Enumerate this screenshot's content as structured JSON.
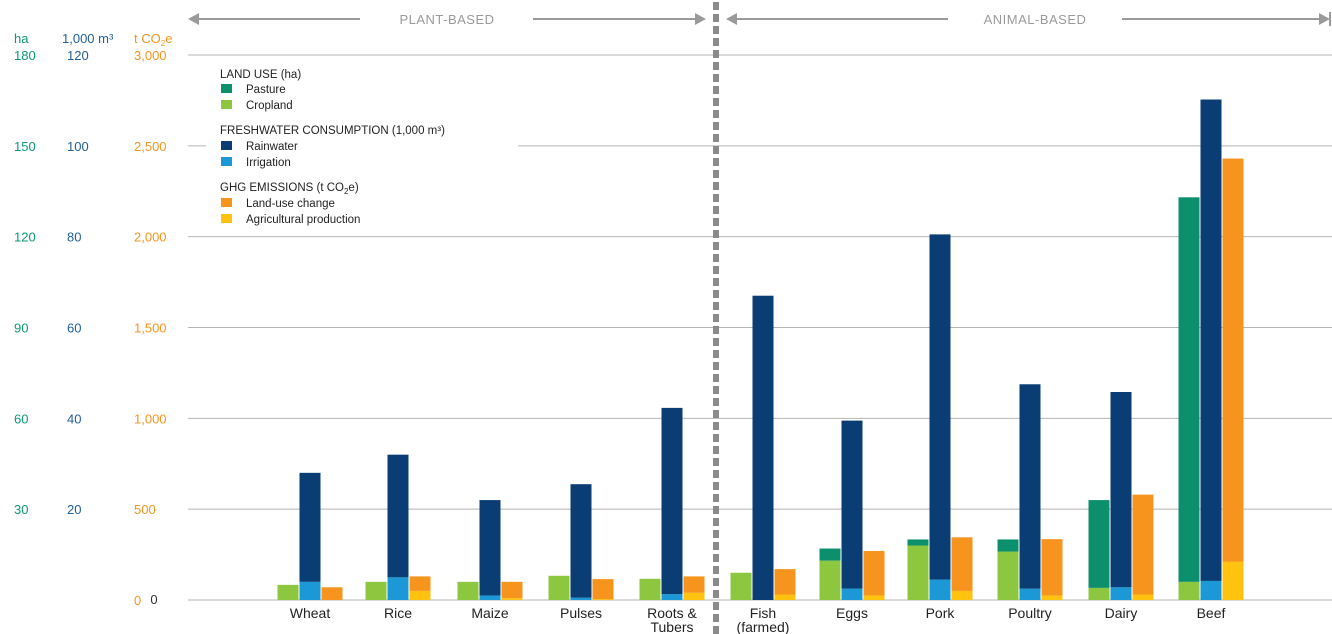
{
  "chart_data": {
    "type": "bar",
    "stacked": true,
    "grouped": true,
    "categories": [
      "Wheat",
      "Rice",
      "Maize",
      "Pulses",
      "Roots & Tubers",
      "Fish (farmed)",
      "Eggs",
      "Pork",
      "Poultry",
      "Dairy",
      "Beef"
    ],
    "sections": [
      {
        "label": "PLANT-BASED",
        "categories": [
          "Wheat",
          "Rice",
          "Maize",
          "Pulses",
          "Roots & Tubers"
        ]
      },
      {
        "label": "ANIMAL-BASED",
        "categories": [
          "Fish (farmed)",
          "Eggs",
          "Pork",
          "Poultry",
          "Dairy",
          "Beef"
        ]
      }
    ],
    "axes": [
      {
        "unit": "ha",
        "ticks": [
          "180",
          "150",
          "120",
          "90",
          "60",
          "30"
        ],
        "ylim": [
          0,
          180
        ],
        "color": "#0b9a74"
      },
      {
        "unit": "1,000 m³",
        "ticks": [
          "120",
          "100",
          "80",
          "60",
          "40",
          "20"
        ],
        "ylim": [
          0,
          120
        ],
        "color": "#1f5f97"
      },
      {
        "unit": "t CO2e",
        "ticks": [
          "3,000",
          "2,500",
          "2,000",
          "1,500",
          "1,000",
          "500",
          "0"
        ],
        "ylim": [
          0,
          3000
        ],
        "color": "#f7941d"
      }
    ],
    "groups": [
      {
        "name": "LAND USE (ha)",
        "axis": 0,
        "series": [
          {
            "name": "Pasture",
            "color": "#0c8f6c",
            "values": [
              0,
              0,
              0,
              0,
              0,
              0,
              4,
              2,
              4,
              29,
              127
            ]
          },
          {
            "name": "Cropland",
            "color": "#8dc63f",
            "values": [
              5,
              6,
              6,
              8,
              7,
              9,
              13,
              18,
              16,
              4,
              6
            ]
          }
        ]
      },
      {
        "name": "FRESHWATER CONSUMPTION (1,000 m³)",
        "axis": 1,
        "series": [
          {
            "name": "Rainwater",
            "color": "#0a3d73",
            "values": [
              24,
              27,
              21,
              25,
              41,
              67,
              37,
              76,
              45,
              43,
              106
            ]
          },
          {
            "name": "Irrigation",
            "color": "#1b98d5",
            "values": [
              4,
              5,
              1,
              0.5,
              1.3,
              0,
              2.5,
              4.5,
              2.5,
              2.8,
              4.2
            ]
          }
        ]
      },
      {
        "name": "GHG EMISSIONS (t CO2e)",
        "axis": 2,
        "series": [
          {
            "name": "Land-use change",
            "color": "#f7941d",
            "values": [
              70,
              80,
              90,
              110,
              90,
              140,
              245,
              295,
              310,
              550,
              2220
            ]
          },
          {
            "name": "Agricultural production",
            "color": "#ffc20e",
            "values": [
              0,
              50,
              10,
              5,
              40,
              30,
              25,
              50,
              25,
              30,
              210
            ]
          }
        ]
      }
    ],
    "legend_placement": "top-left",
    "grid": true
  },
  "labels": {
    "axis0_unit": "ha",
    "axis1_unit": "1,000 m³",
    "axis2_unit_prefix": "t CO",
    "axis2_unit_sub": "2",
    "axis2_unit_suffix": "e",
    "zero_label": "0",
    "plant_section": "PLANT-BASED",
    "animal_section": "ANIMAL-BASED"
  },
  "legend": {
    "land_use_head": "LAND USE (ha)",
    "pasture": "Pasture",
    "cropland": "Cropland",
    "water_head": "FRESHWATER CONSUMPTION (1,000 m³)",
    "rainwater": "Rainwater",
    "irrigation": "Irrigation",
    "ghg_head_prefix": "GHG EMISSIONS (t CO",
    "ghg_head_sub": "2",
    "ghg_head_suffix": "e)",
    "landuse_change": "Land-use change",
    "agri_production": "Agricultural production"
  },
  "colors": {
    "grid": "#b5b5b5",
    "divider": "#8a8a8a",
    "arrow": "#9a9a9a"
  }
}
